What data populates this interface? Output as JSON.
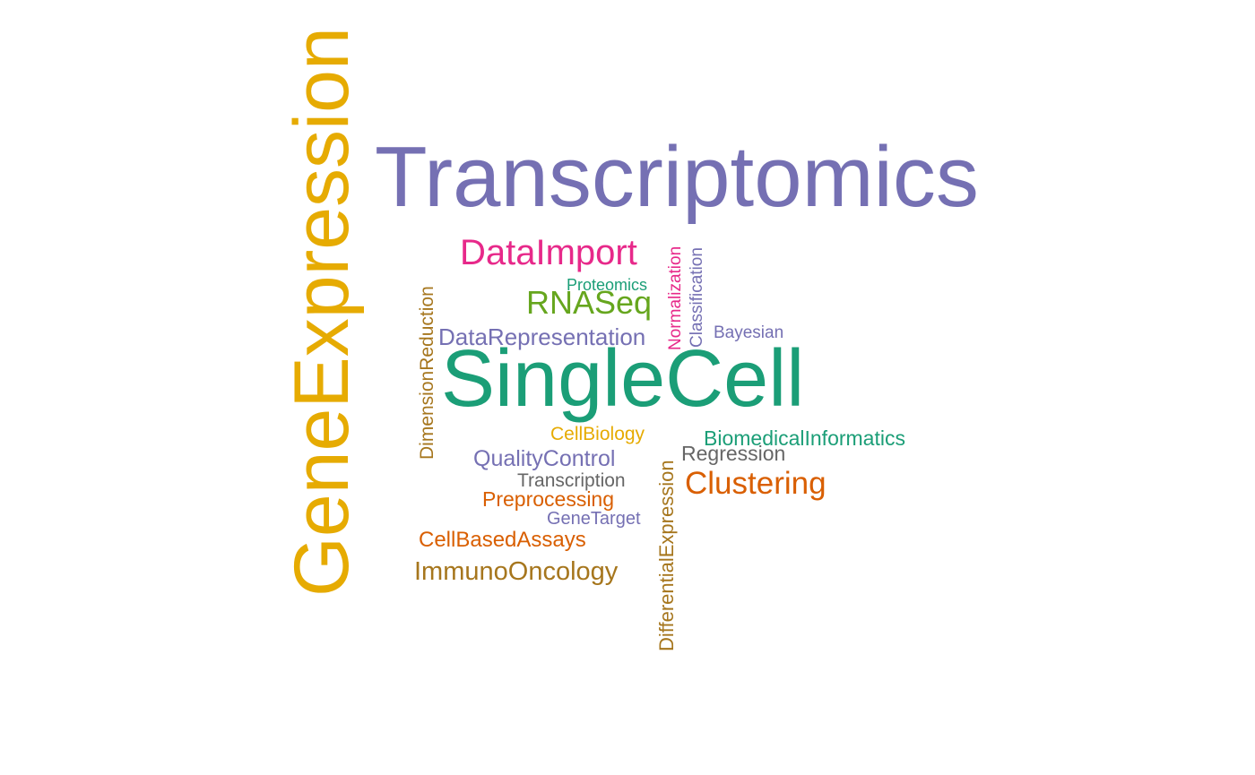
{
  "colors": {
    "teal": "#1b9e77",
    "orange": "#d95f02",
    "purple": "#7570b3",
    "magenta": "#e7298a",
    "green": "#66a61e",
    "gold": "#e6ab02",
    "brown": "#a6761d",
    "gray": "#666666"
  },
  "words": [
    {
      "id": "geneexpression",
      "text": "GeneExpression",
      "color": "gold",
      "rotated": true
    },
    {
      "id": "transcriptomics",
      "text": "Transcriptomics",
      "color": "purple",
      "rotated": false
    },
    {
      "id": "dataimport",
      "text": "DataImport",
      "color": "magenta",
      "rotated": false
    },
    {
      "id": "rnaseq",
      "text": "RNASeq",
      "color": "green",
      "rotated": false
    },
    {
      "id": "proteomics",
      "text": "Proteomics",
      "color": "teal",
      "rotated": false
    },
    {
      "id": "normalization",
      "text": "Normalization",
      "color": "magenta",
      "rotated": true
    },
    {
      "id": "classification",
      "text": "Classification",
      "color": "purple",
      "rotated": true
    },
    {
      "id": "dimensionreduction",
      "text": "DimensionReduction",
      "color": "brown",
      "rotated": true
    },
    {
      "id": "datarepresentation",
      "text": "DataRepresentation",
      "color": "purple",
      "rotated": false
    },
    {
      "id": "bayesian",
      "text": "Bayesian",
      "color": "purple",
      "rotated": false
    },
    {
      "id": "singlecell",
      "text": "SingleCell",
      "color": "teal",
      "rotated": false
    },
    {
      "id": "cellbiology",
      "text": "CellBiology",
      "color": "gold",
      "rotated": false
    },
    {
      "id": "biomedicalinformatics",
      "text": "BiomedicalInformatics",
      "color": "teal",
      "rotated": false
    },
    {
      "id": "regression",
      "text": "Regression",
      "color": "gray",
      "rotated": false
    },
    {
      "id": "qualitycontrol",
      "text": "QualityControl",
      "color": "purple",
      "rotated": false
    },
    {
      "id": "transcription",
      "text": "Transcription",
      "color": "gray",
      "rotated": false
    },
    {
      "id": "clustering",
      "text": "Clustering",
      "color": "orange",
      "rotated": false
    },
    {
      "id": "preprocessing",
      "text": "Preprocessing",
      "color": "orange",
      "rotated": false
    },
    {
      "id": "genetarget",
      "text": "GeneTarget",
      "color": "purple",
      "rotated": false
    },
    {
      "id": "differentialexpression",
      "text": "DifferentialExpression",
      "color": "brown",
      "rotated": true
    },
    {
      "id": "cellbasedassays",
      "text": "CellBasedAssays",
      "color": "orange",
      "rotated": false
    },
    {
      "id": "immunooncology",
      "text": "ImmunoOncology",
      "color": "brown",
      "rotated": false
    }
  ]
}
